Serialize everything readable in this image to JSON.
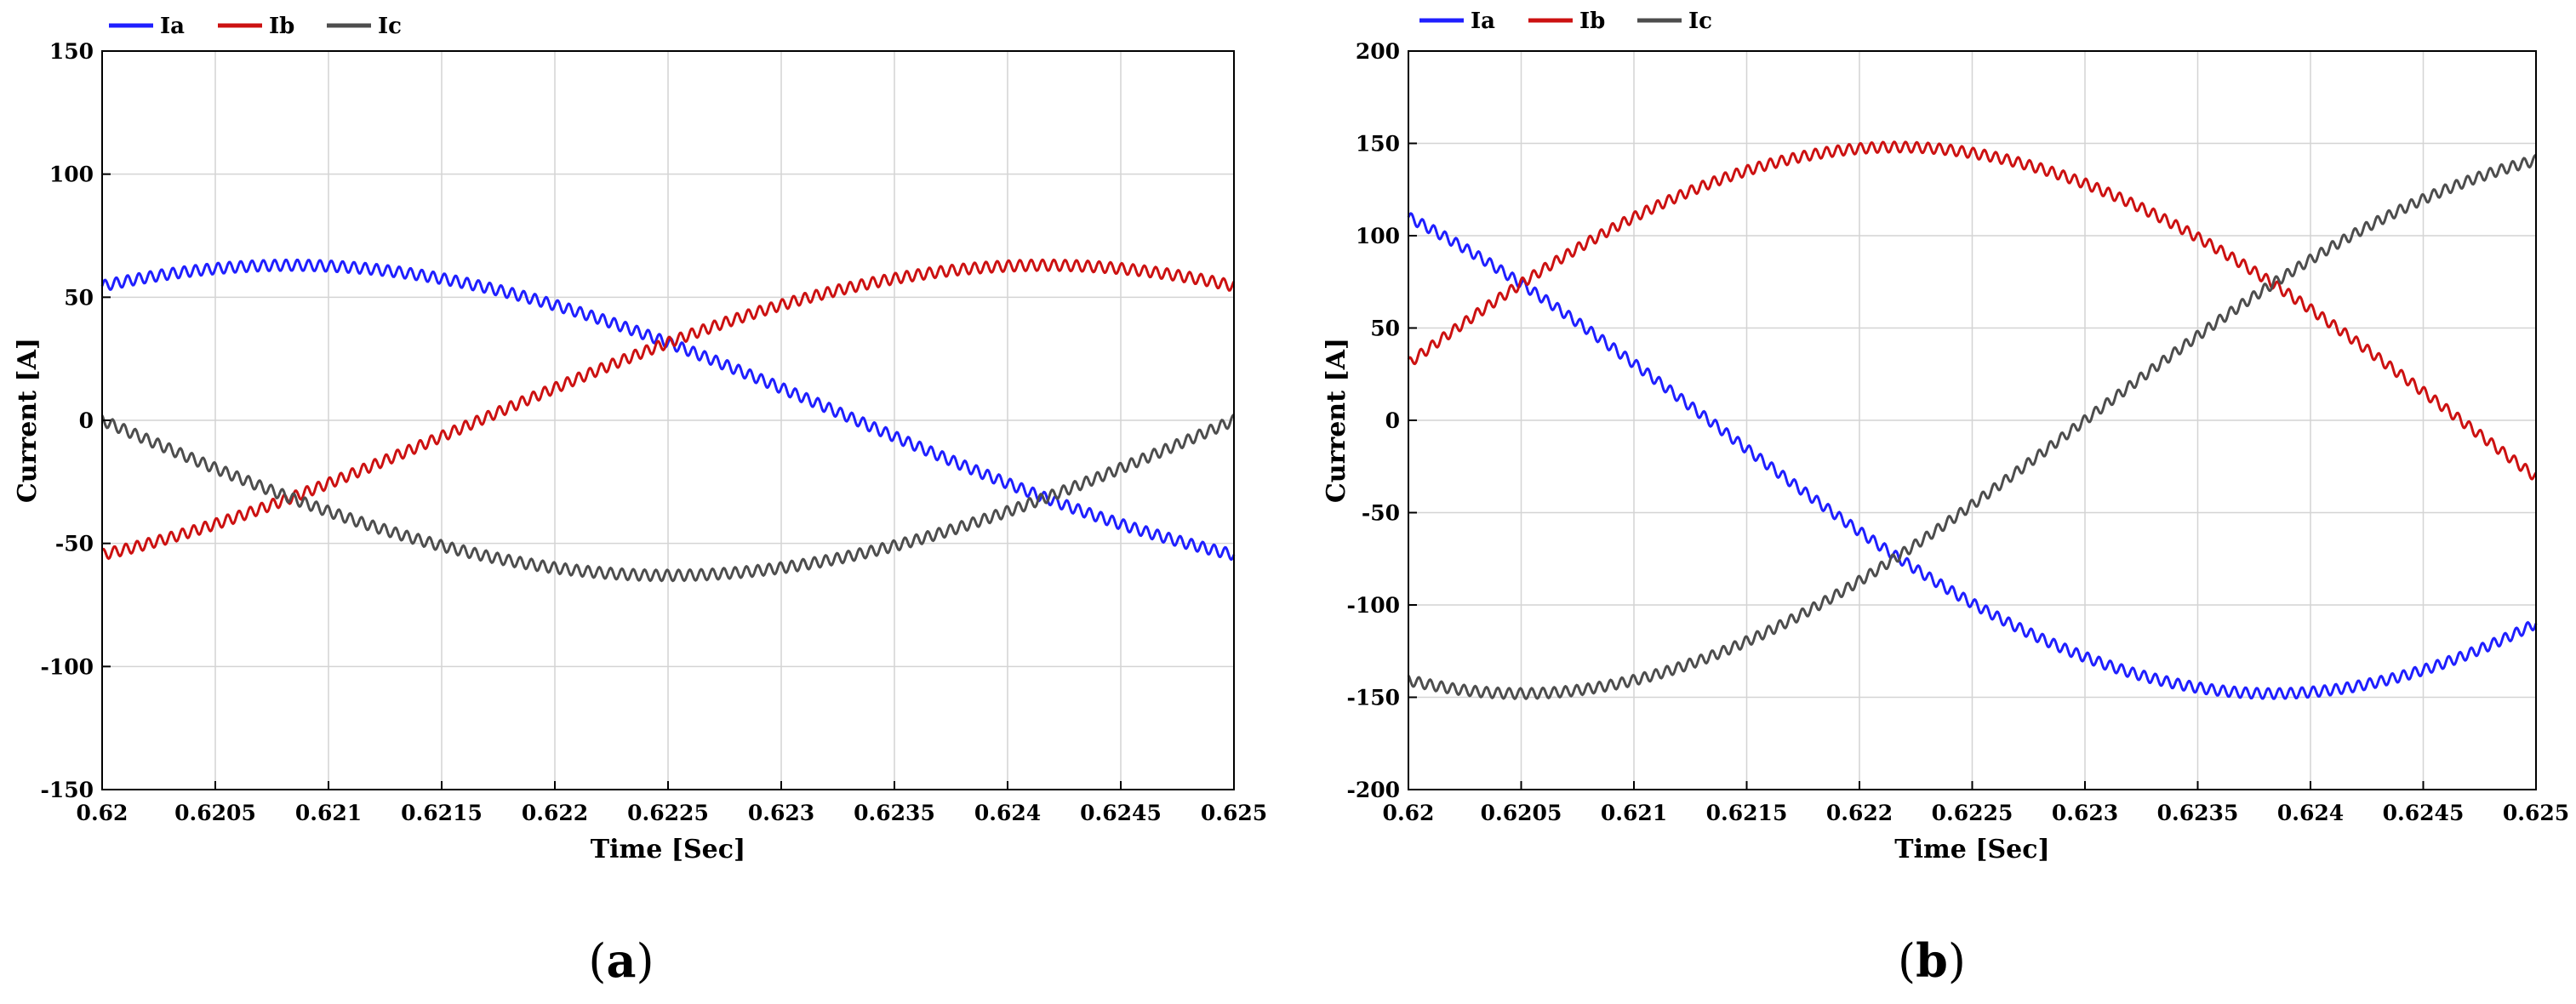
{
  "figure": {
    "captions": [
      {
        "open": "(",
        "letter": "a",
        "close": ")"
      },
      {
        "open": "(",
        "letter": "b",
        "close": ")"
      }
    ]
  },
  "chart_data": [
    {
      "type": "line",
      "title": "",
      "xlabel": "Time [Sec]",
      "ylabel": "Current [A]",
      "xlim": [
        0.62,
        0.625
      ],
      "ylim": [
        -150,
        150
      ],
      "xticks": [
        0.62,
        0.6205,
        0.621,
        0.6215,
        0.622,
        0.6225,
        0.623,
        0.6235,
        0.624,
        0.6245,
        0.625
      ],
      "xtick_labels": [
        "0.62",
        "0.6205",
        "0.621",
        "0.6215",
        "0.622",
        "0.6225",
        "0.623",
        "0.6235",
        "0.624",
        "0.6245",
        "0.625"
      ],
      "yticks": [
        -150,
        -100,
        -50,
        0,
        50,
        100,
        150
      ],
      "ytick_labels": [
        "-150",
        "-100",
        "-50",
        "0",
        "50",
        "100",
        "150"
      ],
      "grid": true,
      "legend": {
        "placement": "top-left, above plot",
        "orientation": "horizontal"
      },
      "series": [
        {
          "name": "Ia",
          "color": "#1f1fff",
          "amplitude": 63,
          "phase_deg": 60,
          "frequency_hz": 100,
          "ripple": 2.2
        },
        {
          "name": "Ib",
          "color": "#cc1111",
          "amplitude": 63,
          "phase_deg": -60,
          "frequency_hz": 100,
          "ripple": 2.2
        },
        {
          "name": "Ic",
          "color": "#4d4d4d",
          "amplitude": 63,
          "phase_deg": 180,
          "frequency_hz": 100,
          "ripple": 2.2
        }
      ]
    },
    {
      "type": "line",
      "title": "",
      "xlabel": "Time [Sec]",
      "ylabel": "Current [A]",
      "xlim": [
        0.62,
        0.625
      ],
      "ylim": [
        -200,
        200
      ],
      "xticks": [
        0.62,
        0.6205,
        0.621,
        0.6215,
        0.622,
        0.6225,
        0.623,
        0.6235,
        0.624,
        0.6245,
        0.625
      ],
      "xtick_labels": [
        "0.62",
        "0.6205",
        "0.621",
        "0.6215",
        "0.622",
        "0.6225",
        "0.623",
        "0.6235",
        "0.624",
        "0.6245",
        "0.625"
      ],
      "yticks": [
        -200,
        -150,
        -100,
        -50,
        0,
        50,
        100,
        150,
        200
      ],
      "ytick_labels": [
        "-200",
        "-150",
        "-100",
        "-50",
        "0",
        "50",
        "100",
        "150",
        "200"
      ],
      "grid": true,
      "legend": {
        "placement": "top-left, above plot",
        "orientation": "horizontal"
      },
      "series": [
        {
          "name": "Ia",
          "color": "#1f1fff",
          "amplitude": 148,
          "phase_deg": 132,
          "frequency_hz": 100,
          "ripple": 2.8
        },
        {
          "name": "Ib",
          "color": "#cc1111",
          "amplitude": 148,
          "phase_deg": 12,
          "frequency_hz": 100,
          "ripple": 2.8
        },
        {
          "name": "Ic",
          "color": "#4d4d4d",
          "amplitude": 148,
          "phase_deg": -108,
          "frequency_hz": 100,
          "ripple": 2.8
        }
      ]
    }
  ]
}
